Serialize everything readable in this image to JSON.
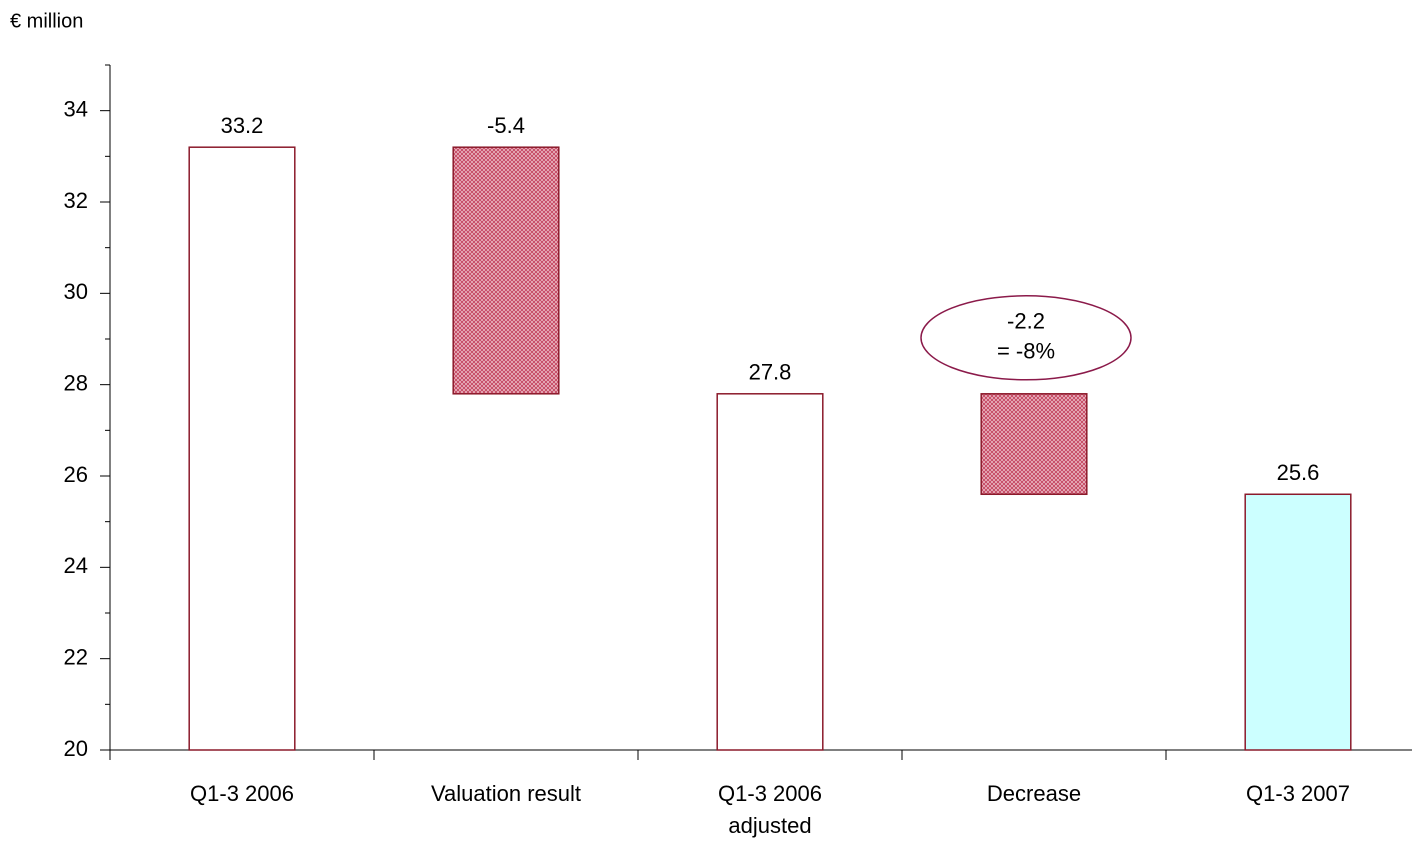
{
  "chart_data": {
    "type": "waterfall",
    "y_label": "€ million",
    "categories": [
      "Q1-3 2006",
      "Valuation result",
      "Q1-3 2006 adjusted",
      "Decrease",
      "Q1-3 2007"
    ],
    "values": [
      33.2,
      -5.4,
      27.8,
      -2.2,
      25.6
    ],
    "kinds": [
      "total",
      "delta",
      "total",
      "delta",
      "total"
    ],
    "colors": [
      "#ffffff",
      "#c8506a",
      "#ffffff",
      "#c8506a",
      "#ccffff"
    ],
    "edge_color": "#8b1a2b",
    "annotations": [
      "= -8%"
    ],
    "ylim": [
      20,
      35
    ],
    "yticks": [
      20,
      22,
      24,
      26,
      28,
      30,
      32,
      34
    ],
    "yminorticks": [
      21,
      23,
      25,
      27,
      29,
      31,
      33,
      35
    ]
  }
}
